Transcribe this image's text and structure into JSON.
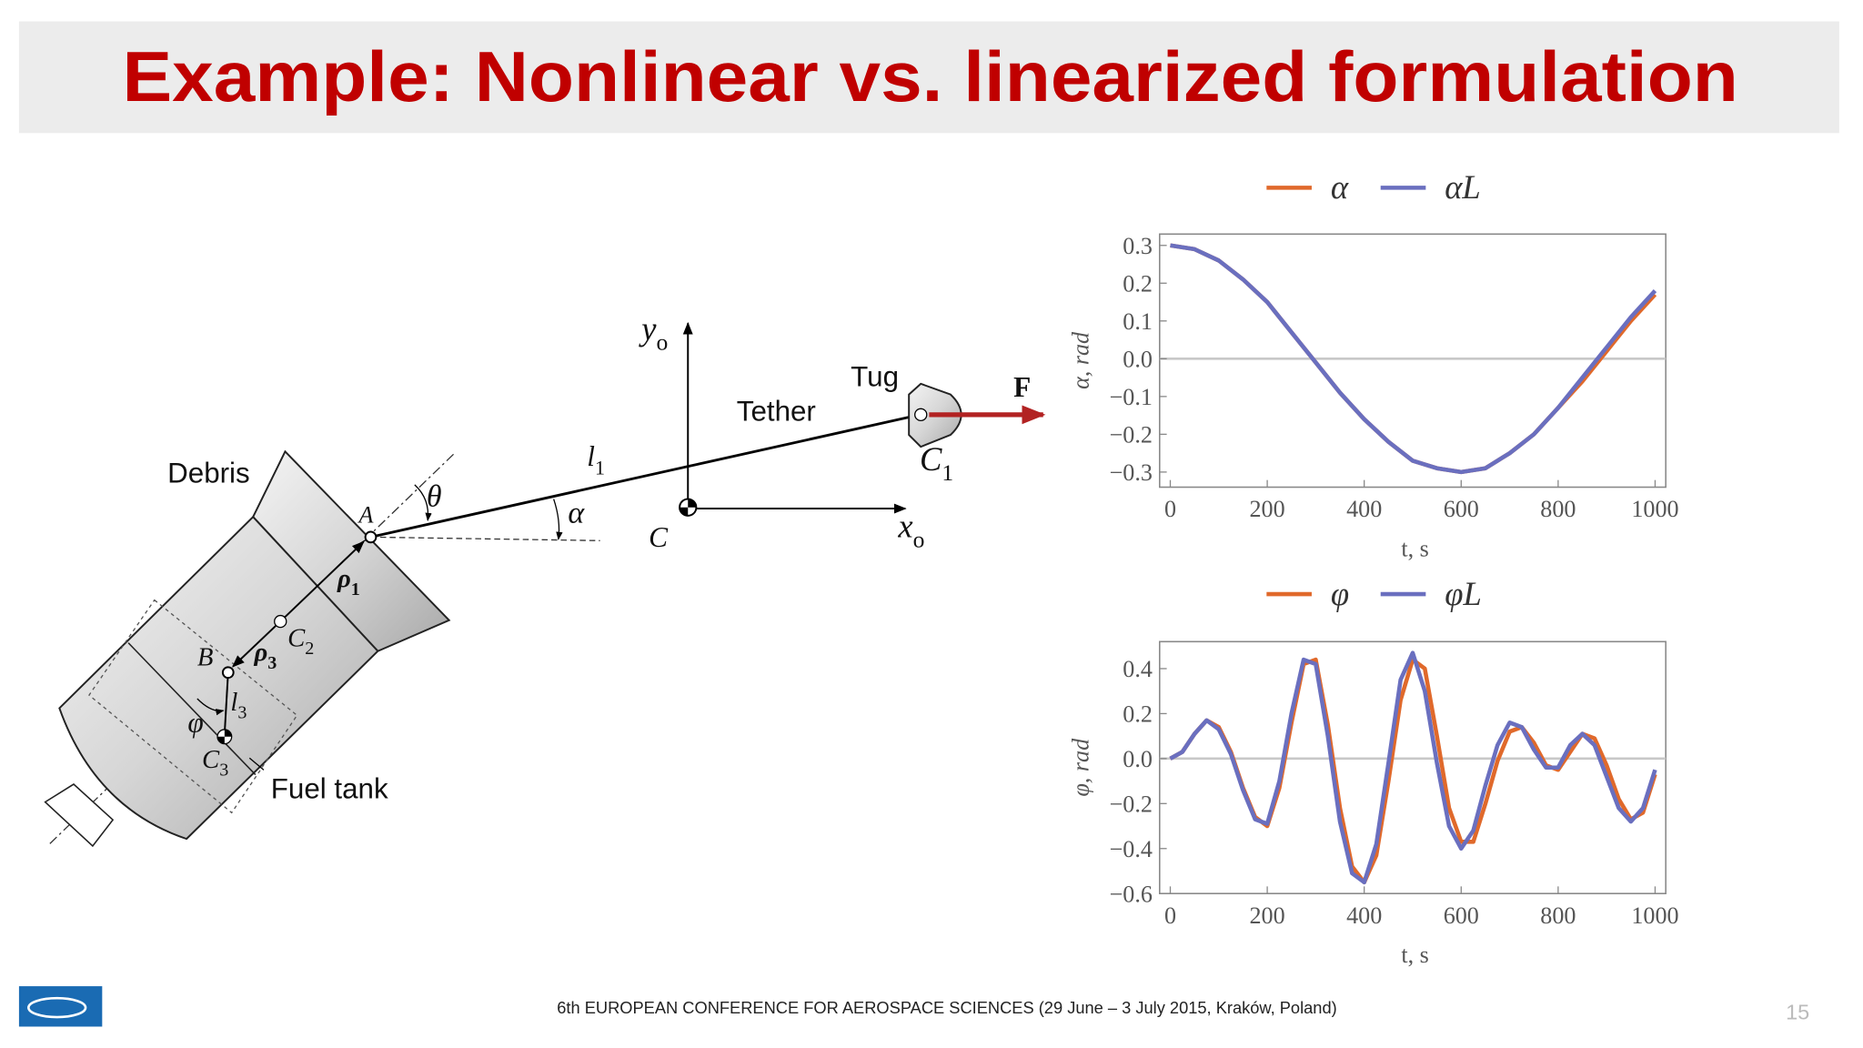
{
  "title": "Example: Nonlinear vs. linearized formulation",
  "diagram": {
    "labels": [
      {
        "text": "Debris"
      },
      {
        "text": "Tug"
      },
      {
        "text": "Tether"
      },
      {
        "text": "Fuel tank"
      },
      {
        "text": "F"
      },
      {
        "text": "y",
        "sub": "o"
      },
      {
        "text": "x",
        "sub": "o"
      },
      {
        "text": "l",
        "sub": "1"
      },
      {
        "text": "θ"
      },
      {
        "text": "α"
      },
      {
        "text": "A"
      },
      {
        "text": "C"
      },
      {
        "text": "C",
        "sub": "1"
      },
      {
        "text": "ρ",
        "sub": "1"
      },
      {
        "text": "C",
        "sub": "2"
      },
      {
        "text": "B"
      },
      {
        "text": "ρ",
        "sub": "3"
      },
      {
        "text": "l",
        "sub": "3"
      },
      {
        "text": "φ"
      },
      {
        "text": "C",
        "sub": "3"
      }
    ]
  },
  "footer": "6th EUROPEAN CONFERENCE FOR AEROSPACE SCIENCES  (29 June – 3 July 2015, Kraków, Poland)",
  "page_number": 15,
  "chart_data": [
    {
      "type": "line",
      "xlabel": "t, s",
      "ylabel": "α, rad",
      "x": [
        0,
        50,
        100,
        150,
        200,
        250,
        300,
        350,
        400,
        450,
        500,
        550,
        600,
        650,
        700,
        750,
        800,
        850,
        900,
        950,
        1000
      ],
      "series": [
        {
          "name": "α",
          "color": "#e0692b",
          "values": [
            0.3,
            0.29,
            0.26,
            0.21,
            0.15,
            0.07,
            -0.01,
            -0.09,
            -0.16,
            -0.22,
            -0.27,
            -0.29,
            -0.3,
            -0.29,
            -0.25,
            -0.2,
            -0.13,
            -0.06,
            0.02,
            0.1,
            0.17
          ]
        },
        {
          "name": "αL",
          "color": "#6a6fbf",
          "values": [
            0.3,
            0.29,
            0.26,
            0.21,
            0.15,
            0.07,
            -0.01,
            -0.09,
            -0.16,
            -0.22,
            -0.27,
            -0.29,
            -0.3,
            -0.29,
            -0.25,
            -0.2,
            -0.13,
            -0.05,
            0.03,
            0.11,
            0.18
          ]
        }
      ],
      "xlim": [
        -22,
        1022
      ],
      "ylim": [
        -0.34,
        0.33
      ],
      "xticks": [
        0,
        200,
        400,
        600,
        800,
        1000
      ],
      "yticks": [
        {
          "value": -0.3,
          "label": "−0.3"
        },
        {
          "value": -0.2,
          "label": "−0.2"
        },
        {
          "value": -0.1,
          "label": "−0.1"
        },
        {
          "value": 0,
          "label": "0.0"
        },
        0.1,
        0.2,
        0.3
      ],
      "reference_line": 0,
      "grid": false
    },
    {
      "type": "line",
      "xlabel": "t, s",
      "ylabel": "φ, rad",
      "x": [
        0,
        25,
        50,
        75,
        100,
        125,
        150,
        175,
        200,
        225,
        250,
        275,
        300,
        325,
        350,
        375,
        400,
        425,
        450,
        475,
        500,
        525,
        550,
        575,
        600,
        625,
        650,
        675,
        700,
        725,
        750,
        775,
        800,
        825,
        850,
        875,
        900,
        925,
        950,
        975,
        1000
      ],
      "series": [
        {
          "name": "φ",
          "color": "#e0692b",
          "values": [
            0,
            0.03,
            0.11,
            0.17,
            0.14,
            0.03,
            -0.13,
            -0.26,
            -0.3,
            -0.13,
            0.16,
            0.42,
            0.44,
            0.15,
            -0.22,
            -0.48,
            -0.55,
            -0.43,
            -0.1,
            0.26,
            0.44,
            0.4,
            0.1,
            -0.22,
            -0.37,
            -0.37,
            -0.2,
            -0.01,
            0.12,
            0.14,
            0.07,
            -0.03,
            -0.05,
            0.03,
            0.11,
            0.09,
            -0.03,
            -0.18,
            -0.27,
            -0.24,
            -0.07
          ]
        },
        {
          "name": "φL",
          "color": "#6a6fbf",
          "values": [
            0,
            0.03,
            0.11,
            0.17,
            0.13,
            0.02,
            -0.14,
            -0.27,
            -0.29,
            -0.1,
            0.2,
            0.44,
            0.42,
            0.1,
            -0.28,
            -0.51,
            -0.55,
            -0.38,
            -0.02,
            0.35,
            0.47,
            0.3,
            -0.02,
            -0.3,
            -0.4,
            -0.32,
            -0.12,
            0.06,
            0.16,
            0.14,
            0.04,
            -0.04,
            -0.04,
            0.06,
            0.11,
            0.06,
            -0.08,
            -0.22,
            -0.28,
            -0.22,
            -0.05
          ]
        }
      ],
      "xlim": [
        -22,
        1022
      ],
      "ylim": [
        -0.6,
        0.52
      ],
      "xticks": [
        0,
        200,
        400,
        600,
        800,
        1000
      ],
      "yticks": [
        {
          "value": -0.6,
          "label": "−0.6"
        },
        {
          "value": -0.4,
          "label": "−0.4"
        },
        {
          "value": -0.2,
          "label": "−0.2"
        },
        {
          "value": 0,
          "label": "0.0"
        },
        0.2,
        0.4
      ],
      "reference_line": 0,
      "grid": false
    }
  ]
}
